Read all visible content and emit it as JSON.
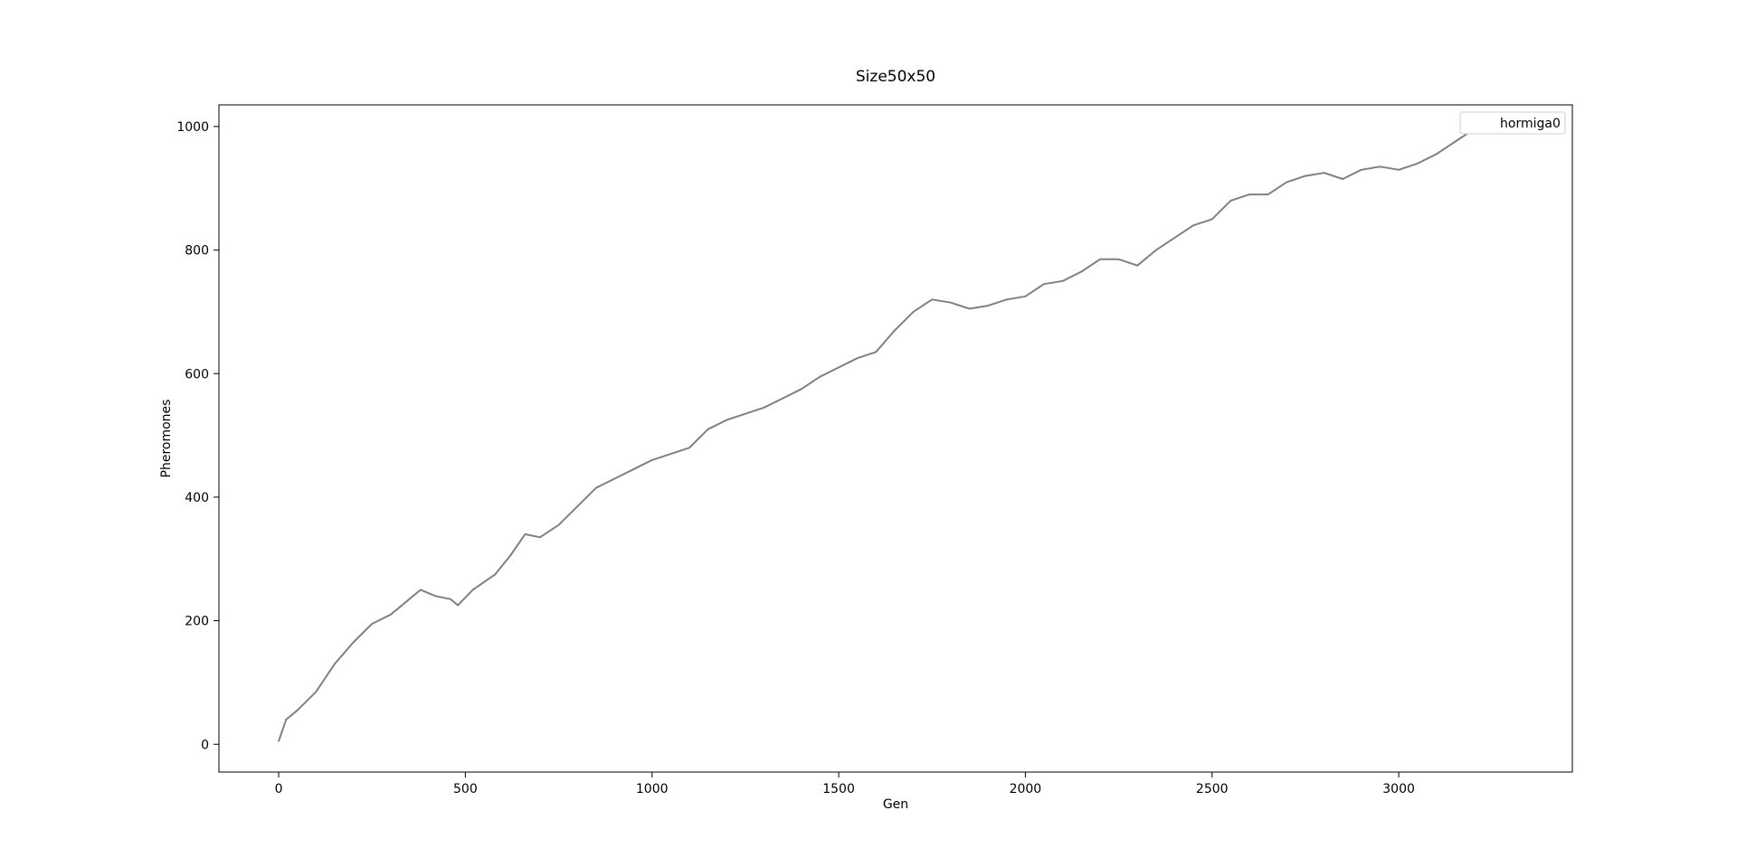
{
  "chart_data": {
    "type": "line",
    "title": "Size50x50",
    "xlabel": "Gen",
    "ylabel": "Pheromones",
    "xlim": [
      -160,
      3465
    ],
    "ylim": [
      -45,
      1035
    ],
    "x_ticks": [
      0,
      500,
      1000,
      1500,
      2000,
      2500,
      3000
    ],
    "y_ticks": [
      0,
      200,
      400,
      600,
      800,
      1000
    ],
    "grid": false,
    "legend": {
      "position": "top-right",
      "entries": [
        "hormiga0"
      ]
    },
    "series": [
      {
        "name": "hormiga0",
        "color": "#808080",
        "x": [
          0,
          20,
          50,
          100,
          150,
          200,
          250,
          300,
          350,
          380,
          420,
          460,
          480,
          520,
          580,
          620,
          660,
          700,
          750,
          800,
          850,
          900,
          950,
          1000,
          1050,
          1100,
          1150,
          1200,
          1250,
          1300,
          1350,
          1400,
          1450,
          1500,
          1550,
          1600,
          1650,
          1700,
          1750,
          1800,
          1850,
          1900,
          1950,
          2000,
          2050,
          2100,
          2150,
          2200,
          2250,
          2300,
          2350,
          2400,
          2450,
          2500,
          2550,
          2600,
          2650,
          2700,
          2750,
          2800,
          2850,
          2900,
          2950,
          3000,
          3050,
          3100,
          3150,
          3200
        ],
        "y": [
          5,
          40,
          55,
          85,
          130,
          165,
          195,
          210,
          235,
          250,
          240,
          235,
          225,
          250,
          275,
          305,
          340,
          335,
          355,
          385,
          415,
          430,
          445,
          460,
          470,
          480,
          510,
          525,
          535,
          545,
          560,
          575,
          595,
          610,
          625,
          635,
          670,
          700,
          720,
          715,
          705,
          710,
          720,
          725,
          745,
          750,
          765,
          785,
          785,
          775,
          800,
          820,
          840,
          850,
          880,
          890,
          890,
          910,
          920,
          925,
          915,
          930,
          935,
          930,
          940,
          955,
          975,
          995
        ]
      }
    ]
  }
}
